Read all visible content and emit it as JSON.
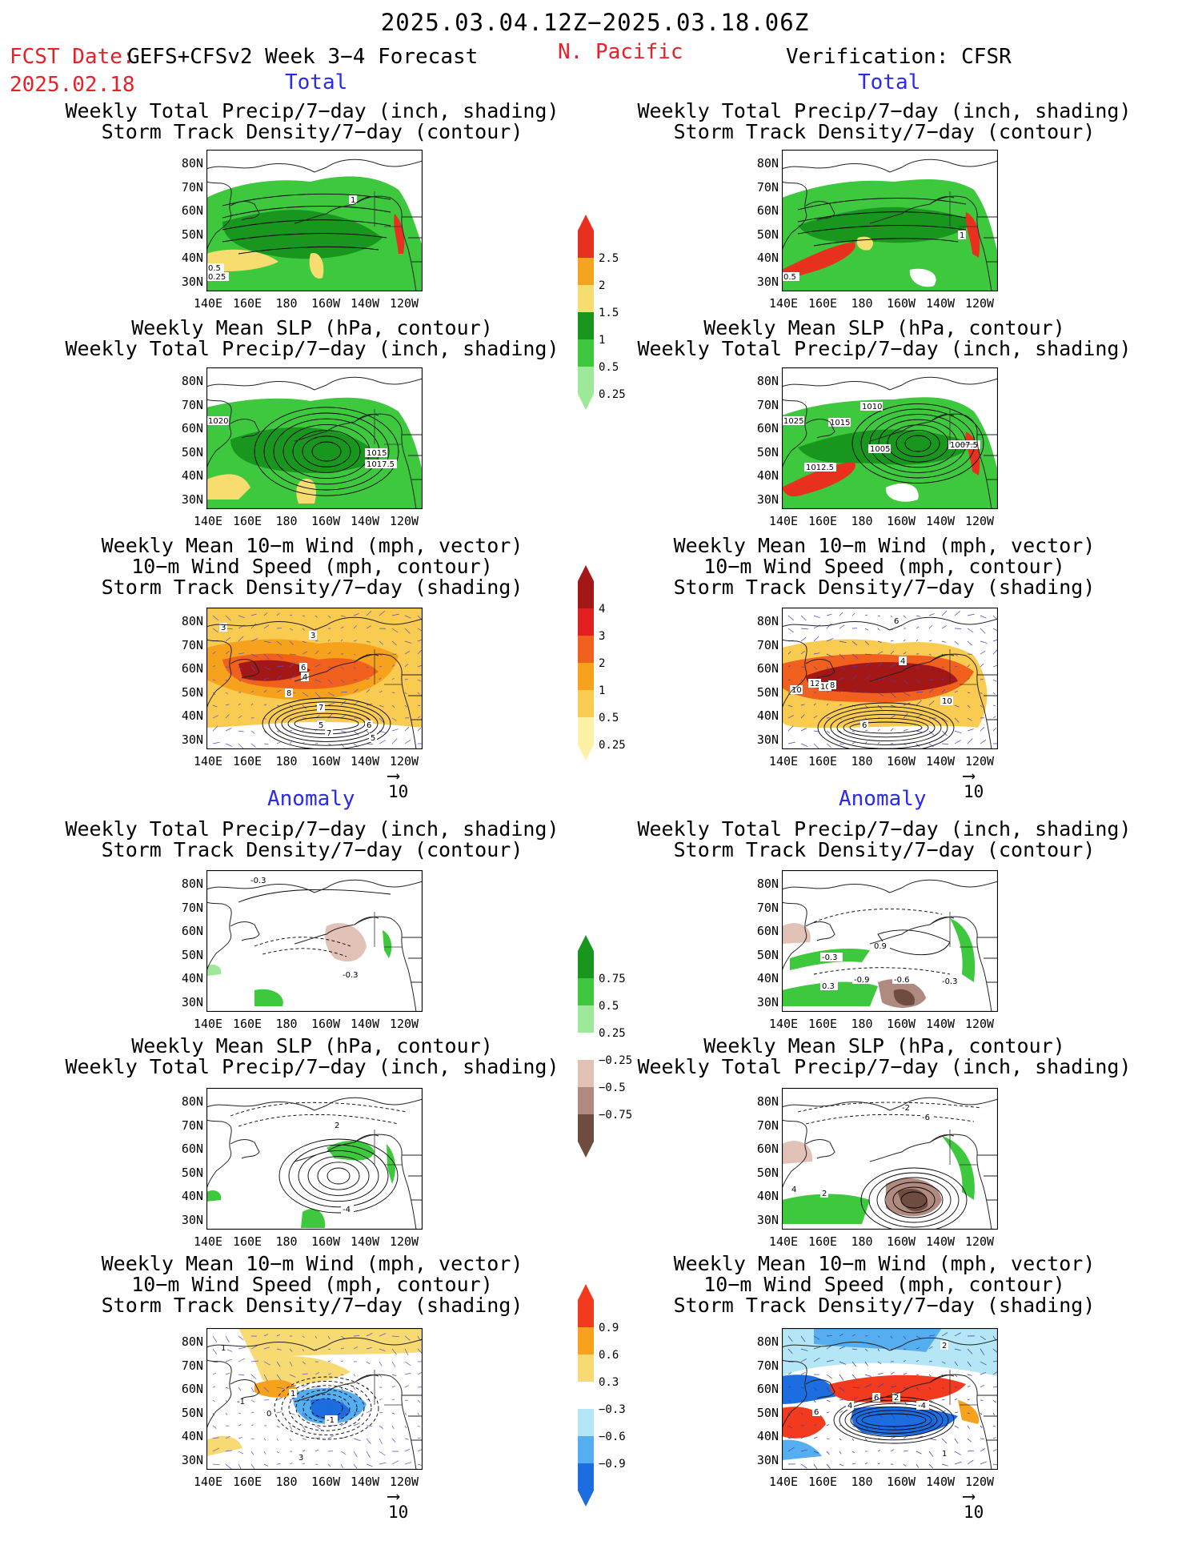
{
  "header": {
    "date_range": "2025.03.04.12Z−2025.03.18.06Z",
    "fcst_label": "FCST Date:",
    "fcst_model": "GEFS+CFSv2 Week 3−4 Forecast",
    "fcst_date": "2025.02.18",
    "region": "N. Pacific",
    "verification": "Verification: CFSR",
    "total_label": "Total",
    "anomaly_label": "Anomaly"
  },
  "titles": {
    "precip_storm": "Weekly Total Precip/7−day (inch, shading)\nStorm Track Density/7−day (contour)",
    "slp_precip": "Weekly Mean SLP (hPa, contour)\nWeekly Total Precip/7−day (inch, shading)",
    "wind_storm": "Weekly Mean 10−m Wind (mph, vector)\n10−m Wind Speed (mph, contour)\nStorm Track Density/7−day (shading)"
  },
  "axes": {
    "lat_labels": [
      "80N",
      "70N",
      "60N",
      "50N",
      "40N",
      "30N"
    ],
    "lon_labels": [
      "140E",
      "160E",
      "180",
      "160W",
      "140W",
      "120W"
    ]
  },
  "vector_ref": "10",
  "colorbars": {
    "total_precip": {
      "labels": [
        "2.5",
        "2",
        "1.5",
        "1",
        "0.5",
        "0.25"
      ],
      "colors": [
        "#e8301e",
        "#f5a41f",
        "#f7dc6f",
        "#18961e",
        "#3ec83e",
        "#9ee89a"
      ]
    },
    "total_storm": {
      "labels": [
        "4",
        "3",
        "2",
        "1",
        "0.5",
        "0.25"
      ],
      "colors": [
        "#a31717",
        "#e21f1f",
        "#f2601e",
        "#f7a21c",
        "#f9cb50",
        "#fdf1a6"
      ]
    },
    "anom_precip": {
      "labels": [
        "0.75",
        "0.5",
        "0.25",
        "−0.25",
        "−0.5",
        "−0.75"
      ],
      "colors": [
        "#18961e",
        "#3ec83e",
        "#9ee89a",
        "#ffffff",
        "#e2c2b6",
        "#b08a7e",
        "#6e4c40"
      ]
    },
    "anom_storm": {
      "labels": [
        "0.9",
        "0.6",
        "0.3",
        "−0.3",
        "−0.6",
        "−0.9"
      ],
      "colors": [
        "#f23a1e",
        "#f7a21c",
        "#f8da72",
        "#ffffff",
        "#b4e6f5",
        "#55aef0",
        "#1c6de0"
      ]
    }
  },
  "contour_labels": {
    "fc_total_precip": [
      "1",
      "0.5",
      "0.25"
    ],
    "vr_total_precip": [
      "1",
      "0.5"
    ],
    "fc_total_slp": [
      "1020",
      "1015",
      "1017.5"
    ],
    "vr_total_slp": [
      "1025",
      "1015",
      "1010",
      "1005",
      "1007.5",
      "1012.5"
    ],
    "fc_total_wind": [
      "3",
      "3",
      "4",
      "6",
      "8",
      "7",
      "5",
      "6",
      "7",
      "5"
    ],
    "vr_total_wind": [
      "6",
      "4",
      "12",
      "10",
      "10",
      "8",
      "6",
      "10"
    ],
    "fc_anom_precip": [
      "-0.3",
      "-0.3"
    ],
    "vr_anom_precip": [
      "0.9",
      "-0.3",
      "0.3",
      "-0.9",
      "-0.6",
      "-0.3"
    ],
    "fc_anom_slp": [
      "2",
      "-4"
    ],
    "vr_anom_slp": [
      "-2",
      "-6",
      "2",
      "4"
    ],
    "fc_anom_wind": [
      "1",
      "-1",
      "1",
      "0",
      "-1",
      "3"
    ],
    "vr_anom_wind": [
      "2",
      "4",
      "2",
      "6",
      "-4",
      "6",
      "1"
    ]
  }
}
